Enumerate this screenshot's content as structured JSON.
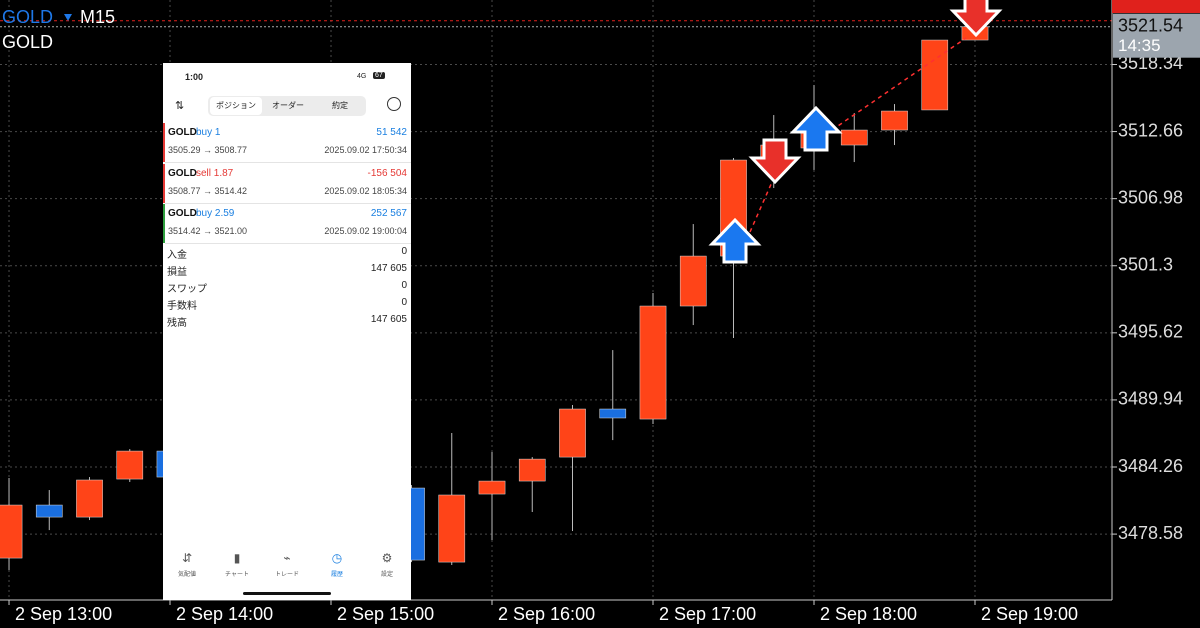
{
  "header": {
    "symbol": "GOLD",
    "timeframe": "M15",
    "subtitle": "GOLD"
  },
  "chart_data": {
    "type": "candlestick",
    "x": [
      13,
      13.25,
      13.5,
      13.75,
      14,
      15.5,
      15.75,
      16,
      16.25,
      16.5,
      16.75,
      17,
      17.25,
      17.5,
      17.75,
      18,
      18.25,
      18.5,
      18.75,
      19
    ],
    "open": [
      3476.55,
      3481.04,
      3480.02,
      3483.24,
      3485.61,
      3482.48,
      3476.21,
      3481.97,
      3483.07,
      3485.1,
      3489.17,
      3488.32,
      3497.89,
      3502.12,
      3510.25,
      3511.27,
      3511.52,
      3512.79,
      3514.49,
      3520.41
    ],
    "high": [
      3483.33,
      3482.31,
      3483.41,
      3485.78,
      3485.78,
      3482.73,
      3487.14,
      3485.53,
      3485.1,
      3489.51,
      3494.16,
      3498.99,
      3504.83,
      3510.42,
      3514.06,
      3516.6,
      3514.23,
      3514.99,
      3520.41,
      3522.8
    ],
    "low": [
      3475.54,
      3478.92,
      3479.77,
      3482.99,
      3483.24,
      3476.21,
      3475.96,
      3478.08,
      3480.45,
      3478.84,
      3486.54,
      3487.9,
      3496.28,
      3495.18,
      3507.88,
      3509.41,
      3510.08,
      3511.52,
      3514.49,
      3520.41
    ],
    "close": [
      3481.04,
      3480.02,
      3483.16,
      3485.61,
      3483.41,
      3476.38,
      3481.89,
      3483.07,
      3484.93,
      3489.17,
      3488.41,
      3497.89,
      3502.12,
      3510.25,
      3511.52,
      3512.71,
      3512.79,
      3514.4,
      3520.41,
      3521.54
    ],
    "up_color": "#ff4418",
    "down_color": "#1a6fe0",
    "xlim": [
      12.944,
      19.851
    ],
    "xticks": [
      {
        "value": 13,
        "label": "2 Sep 13:00"
      },
      {
        "value": 14,
        "label": "2 Sep 14:00"
      },
      {
        "value": 15,
        "label": "2 Sep 15:00"
      },
      {
        "value": 16,
        "label": "2 Sep 16:00"
      },
      {
        "value": 17,
        "label": "2 Sep 17:00"
      },
      {
        "value": 18,
        "label": "2 Sep 18:00"
      },
      {
        "value": 19,
        "label": "2 Sep 19:00"
      }
    ],
    "ylim": [
      3473.0,
      3523.8
    ],
    "yticks": [
      3478.58,
      3484.26,
      3489.94,
      3495.62,
      3501.3,
      3506.98,
      3512.66,
      3518.34
    ],
    "grid": true,
    "last_price": 3521.54,
    "timer": "14:35"
  },
  "phone": {
    "status": {
      "time": "1:00",
      "network": "4G",
      "battery": "67"
    },
    "tabs": [
      "ポジション",
      "オーダー",
      "約定"
    ],
    "trades": [
      {
        "symbol": "GOLD",
        "side": "buy 1",
        "profit": "51 542",
        "prices": "3505.29 → 3508.77",
        "time": "2025.09.02 17:50:34"
      },
      {
        "symbol": "GOLD",
        "side": "sell 1.87",
        "profit": "-156 504",
        "prices": "3508.77 → 3514.42",
        "time": "2025.09.02 18:05:34"
      },
      {
        "symbol": "GOLD",
        "side": "buy 2.59",
        "profit": "252 567",
        "prices": "3514.42 → 3521.00",
        "time": "2025.09.02 19:00:04"
      }
    ],
    "summary": [
      [
        "入金",
        "0"
      ],
      [
        "損益",
        "147 605"
      ],
      [
        "スワップ",
        "0"
      ],
      [
        "手数料",
        "0"
      ],
      [
        "残高",
        "147 605"
      ]
    ],
    "nav": [
      "気配値",
      "チャート",
      "トレード",
      "履歴",
      "設定"
    ]
  }
}
